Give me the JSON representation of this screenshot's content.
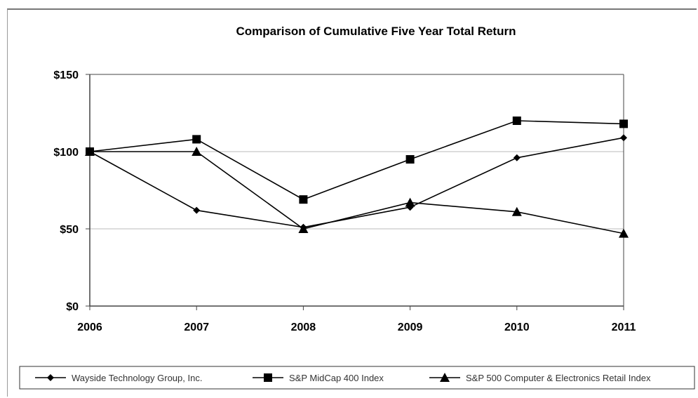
{
  "chart_data": {
    "type": "line",
    "title": "Comparison of Cumulative Five Year Total Return",
    "categories": [
      "2006",
      "2007",
      "2008",
      "2009",
      "2010",
      "2011"
    ],
    "y_ticks": [
      "$0",
      "$50",
      "$100",
      "$150"
    ],
    "ylim": [
      0,
      150
    ],
    "grid": "horizontal",
    "legend_position": "bottom",
    "series": [
      {
        "name": "Wayside Technology Group, Inc.",
        "marker": "diamond",
        "values": [
          100,
          62,
          51,
          64,
          96,
          109
        ]
      },
      {
        "name": "S&P MidCap 400 Index",
        "marker": "square",
        "values": [
          100,
          108,
          69,
          95,
          120,
          118
        ]
      },
      {
        "name": "S&P 500 Computer & Electronics Retail Index",
        "marker": "triangle",
        "values": [
          100,
          100,
          50,
          67,
          61,
          47
        ]
      }
    ],
    "colors": {
      "line": "#000000",
      "grid": "#bbbbbb",
      "axis": "#444444"
    }
  }
}
